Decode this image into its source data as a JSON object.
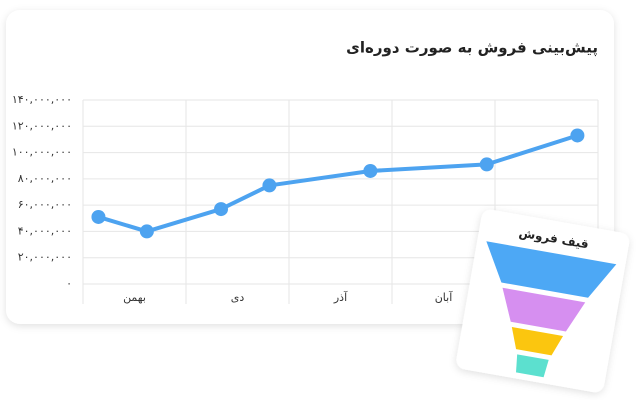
{
  "chart_data": {
    "type": "line",
    "title": "پیش‌بینی فروش به صورت دوره‌ای",
    "categories": [
      "بهمن",
      "دی",
      "آذر",
      "آبان",
      null
    ],
    "x": [
      0.15,
      0.62,
      1.34,
      1.81,
      2.79,
      3.92,
      4.8
    ],
    "values": [
      51000000,
      40000000,
      57000000,
      75000000,
      86000000,
      91000000,
      113000000
    ],
    "color": "#4da3f0",
    "xlim": [
      0,
      5
    ],
    "ylim": [
      0,
      140000000
    ],
    "yticks": [
      0,
      {
        "value": 20000000,
        "label": "۲۰,۰۰۰,۰۰۰"
      },
      {
        "value": 40000000,
        "label": "۴۰,۰۰۰,۰۰۰"
      },
      {
        "value": 60000000,
        "label": "۶۰,۰۰۰,۰۰۰"
      },
      {
        "value": 80000000,
        "label": "۸۰,۰۰۰,۰۰۰"
      },
      {
        "value": 100000000,
        "label": "۱۰۰,۰۰۰,۰۰۰"
      },
      {
        "value": 120000000,
        "label": "۱۲۰,۰۰۰,۰۰۰"
      },
      {
        "value": 140000000,
        "label": "۱۴۰,۰۰۰,۰۰۰"
      }
    ],
    "yticks_zero_label": "۰",
    "grid": true
  },
  "funnel": {
    "title": "قیف فروش"
  }
}
